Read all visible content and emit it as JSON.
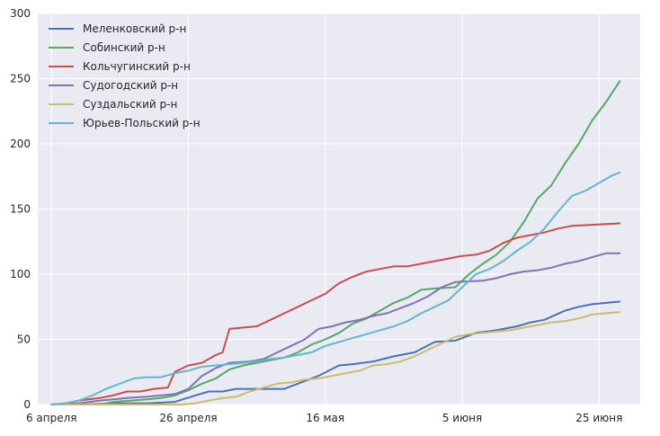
{
  "chart_data": {
    "type": "line",
    "title": "",
    "xlabel": "",
    "ylabel": "",
    "ylim": [
      0,
      300
    ],
    "yticks": [
      0,
      50,
      100,
      150,
      200,
      250,
      300
    ],
    "xlim": [
      "2020-04-04",
      "2020-07-01"
    ],
    "xticks": [
      {
        "date": "2020-04-06",
        "label": "6 апреля"
      },
      {
        "date": "2020-04-26",
        "label": "26 апреля"
      },
      {
        "date": "2020-05-16",
        "label": "16 мая"
      },
      {
        "date": "2020-06-05",
        "label": "5 июня"
      },
      {
        "date": "2020-06-25",
        "label": "25 июня"
      }
    ],
    "grid": true,
    "legend_position": "top-left",
    "colors": {
      "background": "#eaeaf2",
      "grid": "#ffffff",
      "text": "#262626"
    },
    "series": [
      {
        "name": "Меленковский р-н",
        "color": "#4c72b0",
        "points": [
          [
            "2020-04-06",
            0
          ],
          [
            "2020-04-10",
            0
          ],
          [
            "2020-04-16",
            1
          ],
          [
            "2020-04-20",
            1
          ],
          [
            "2020-04-24",
            2
          ],
          [
            "2020-04-27",
            7
          ],
          [
            "2020-04-29",
            10
          ],
          [
            "2020-05-01",
            10
          ],
          [
            "2020-05-03",
            12
          ],
          [
            "2020-05-06",
            12
          ],
          [
            "2020-05-10",
            12
          ],
          [
            "2020-05-13",
            18
          ],
          [
            "2020-05-15",
            22
          ],
          [
            "2020-05-18",
            30
          ],
          [
            "2020-05-20",
            31
          ],
          [
            "2020-05-23",
            33
          ],
          [
            "2020-05-26",
            37
          ],
          [
            "2020-05-29",
            40
          ],
          [
            "2020-06-01",
            48
          ],
          [
            "2020-06-04",
            49
          ],
          [
            "2020-06-07",
            55
          ],
          [
            "2020-06-10",
            57
          ],
          [
            "2020-06-13",
            60
          ],
          [
            "2020-06-15",
            63
          ],
          [
            "2020-06-17",
            65
          ],
          [
            "2020-06-20",
            72
          ],
          [
            "2020-06-22",
            75
          ],
          [
            "2020-06-24",
            77
          ],
          [
            "2020-06-26",
            78
          ],
          [
            "2020-06-28",
            79
          ]
        ]
      },
      {
        "name": "Собинский р-н",
        "color": "#55a868",
        "points": [
          [
            "2020-04-06",
            0
          ],
          [
            "2020-04-13",
            0
          ],
          [
            "2020-04-15",
            2
          ],
          [
            "2020-04-20",
            4
          ],
          [
            "2020-04-22",
            5
          ],
          [
            "2020-04-24",
            7
          ],
          [
            "2020-04-26",
            11
          ],
          [
            "2020-04-28",
            16
          ],
          [
            "2020-04-30",
            20
          ],
          [
            "2020-05-02",
            27
          ],
          [
            "2020-05-04",
            30
          ],
          [
            "2020-05-06",
            32
          ],
          [
            "2020-05-08",
            34
          ],
          [
            "2020-05-10",
            36
          ],
          [
            "2020-05-12",
            40
          ],
          [
            "2020-05-14",
            46
          ],
          [
            "2020-05-16",
            50
          ],
          [
            "2020-05-18",
            55
          ],
          [
            "2020-05-20",
            62
          ],
          [
            "2020-05-22",
            66
          ],
          [
            "2020-05-24",
            72
          ],
          [
            "2020-05-26",
            78
          ],
          [
            "2020-05-28",
            82
          ],
          [
            "2020-05-30",
            88
          ],
          [
            "2020-06-01",
            89
          ],
          [
            "2020-06-04",
            90
          ],
          [
            "2020-06-06",
            100
          ],
          [
            "2020-06-08",
            108
          ],
          [
            "2020-06-10",
            115
          ],
          [
            "2020-06-12",
            125
          ],
          [
            "2020-06-14",
            140
          ],
          [
            "2020-06-16",
            158
          ],
          [
            "2020-06-18",
            168
          ],
          [
            "2020-06-20",
            185
          ],
          [
            "2020-06-22",
            200
          ],
          [
            "2020-06-24",
            218
          ],
          [
            "2020-06-26",
            232
          ],
          [
            "2020-06-28",
            248
          ]
        ]
      },
      {
        "name": "Кольчугинский р-н",
        "color": "#c44e52",
        "points": [
          [
            "2020-04-06",
            0
          ],
          [
            "2020-04-08",
            1
          ],
          [
            "2020-04-10",
            3
          ],
          [
            "2020-04-13",
            5
          ],
          [
            "2020-04-15",
            7
          ],
          [
            "2020-04-17",
            10
          ],
          [
            "2020-04-19",
            10
          ],
          [
            "2020-04-21",
            12
          ],
          [
            "2020-04-23",
            13
          ],
          [
            "2020-04-24",
            25
          ],
          [
            "2020-04-26",
            30
          ],
          [
            "2020-04-28",
            32
          ],
          [
            "2020-04-30",
            38
          ],
          [
            "2020-05-01",
            40
          ],
          [
            "2020-05-02",
            58
          ],
          [
            "2020-05-04",
            59
          ],
          [
            "2020-05-06",
            60
          ],
          [
            "2020-05-08",
            65
          ],
          [
            "2020-05-10",
            70
          ],
          [
            "2020-05-12",
            75
          ],
          [
            "2020-05-14",
            80
          ],
          [
            "2020-05-16",
            85
          ],
          [
            "2020-05-18",
            93
          ],
          [
            "2020-05-20",
            98
          ],
          [
            "2020-05-22",
            102
          ],
          [
            "2020-05-24",
            104
          ],
          [
            "2020-05-26",
            106
          ],
          [
            "2020-05-28",
            106
          ],
          [
            "2020-05-30",
            108
          ],
          [
            "2020-06-01",
            110
          ],
          [
            "2020-06-03",
            112
          ],
          [
            "2020-06-05",
            114
          ],
          [
            "2020-06-07",
            115
          ],
          [
            "2020-06-09",
            118
          ],
          [
            "2020-06-11",
            124
          ],
          [
            "2020-06-13",
            128
          ],
          [
            "2020-06-15",
            130
          ],
          [
            "2020-06-17",
            132
          ],
          [
            "2020-06-19",
            135
          ],
          [
            "2020-06-21",
            137
          ],
          [
            "2020-06-28",
            139
          ]
        ]
      },
      {
        "name": "Судогодский р-н",
        "color": "#8172b2",
        "points": [
          [
            "2020-04-06",
            0
          ],
          [
            "2020-04-10",
            1
          ],
          [
            "2020-04-13",
            3
          ],
          [
            "2020-04-15",
            4
          ],
          [
            "2020-04-17",
            5
          ],
          [
            "2020-04-20",
            6
          ],
          [
            "2020-04-22",
            7
          ],
          [
            "2020-04-24",
            8
          ],
          [
            "2020-04-26",
            12
          ],
          [
            "2020-04-28",
            22
          ],
          [
            "2020-04-30",
            28
          ],
          [
            "2020-05-02",
            32
          ],
          [
            "2020-05-05",
            33
          ],
          [
            "2020-05-07",
            35
          ],
          [
            "2020-05-09",
            40
          ],
          [
            "2020-05-11",
            45
          ],
          [
            "2020-05-13",
            50
          ],
          [
            "2020-05-15",
            58
          ],
          [
            "2020-05-17",
            60
          ],
          [
            "2020-05-19",
            63
          ],
          [
            "2020-05-21",
            65
          ],
          [
            "2020-05-23",
            68
          ],
          [
            "2020-05-25",
            70
          ],
          [
            "2020-05-27",
            74
          ],
          [
            "2020-05-29",
            78
          ],
          [
            "2020-05-31",
            83
          ],
          [
            "2020-06-02",
            90
          ],
          [
            "2020-06-04",
            94
          ],
          [
            "2020-06-08",
            95
          ],
          [
            "2020-06-10",
            97
          ],
          [
            "2020-06-12",
            100
          ],
          [
            "2020-06-14",
            102
          ],
          [
            "2020-06-16",
            103
          ],
          [
            "2020-06-18",
            105
          ],
          [
            "2020-06-20",
            108
          ],
          [
            "2020-06-22",
            110
          ],
          [
            "2020-06-24",
            113
          ],
          [
            "2020-06-26",
            116
          ],
          [
            "2020-06-28",
            116
          ]
        ]
      },
      {
        "name": "Суздальский р-н",
        "color": "#ccb974",
        "points": [
          [
            "2020-04-06",
            0
          ],
          [
            "2020-04-25",
            0
          ],
          [
            "2020-04-27",
            1
          ],
          [
            "2020-04-29",
            3
          ],
          [
            "2020-05-01",
            5
          ],
          [
            "2020-05-03",
            6
          ],
          [
            "2020-05-05",
            10
          ],
          [
            "2020-05-07",
            13
          ],
          [
            "2020-05-09",
            16
          ],
          [
            "2020-05-11",
            17
          ],
          [
            "2020-05-13",
            19
          ],
          [
            "2020-05-15",
            20
          ],
          [
            "2020-05-17",
            22
          ],
          [
            "2020-05-19",
            24
          ],
          [
            "2020-05-21",
            26
          ],
          [
            "2020-05-23",
            30
          ],
          [
            "2020-05-25",
            31
          ],
          [
            "2020-05-27",
            33
          ],
          [
            "2020-05-29",
            37
          ],
          [
            "2020-05-31",
            42
          ],
          [
            "2020-06-02",
            47
          ],
          [
            "2020-06-04",
            52
          ],
          [
            "2020-06-06",
            54
          ],
          [
            "2020-06-08",
            55
          ],
          [
            "2020-06-10",
            56
          ],
          [
            "2020-06-12",
            57
          ],
          [
            "2020-06-14",
            59
          ],
          [
            "2020-06-16",
            61
          ],
          [
            "2020-06-18",
            63
          ],
          [
            "2020-06-20",
            64
          ],
          [
            "2020-06-22",
            66
          ],
          [
            "2020-06-24",
            69
          ],
          [
            "2020-06-26",
            70
          ],
          [
            "2020-06-28",
            71
          ]
        ]
      },
      {
        "name": "Юрьев-Польский р-н",
        "color": "#64b5cd",
        "points": [
          [
            "2020-04-06",
            0
          ],
          [
            "2020-04-08",
            1
          ],
          [
            "2020-04-10",
            3
          ],
          [
            "2020-04-12",
            7
          ],
          [
            "2020-04-14",
            12
          ],
          [
            "2020-04-16",
            16
          ],
          [
            "2020-04-18",
            20
          ],
          [
            "2020-04-20",
            21
          ],
          [
            "2020-04-22",
            21
          ],
          [
            "2020-04-24",
            24
          ],
          [
            "2020-04-26",
            26
          ],
          [
            "2020-04-28",
            29
          ],
          [
            "2020-04-30",
            30
          ],
          [
            "2020-05-02",
            31
          ],
          [
            "2020-05-04",
            32
          ],
          [
            "2020-05-06",
            33
          ],
          [
            "2020-05-08",
            35
          ],
          [
            "2020-05-10",
            36
          ],
          [
            "2020-05-12",
            38
          ],
          [
            "2020-05-14",
            40
          ],
          [
            "2020-05-16",
            45
          ],
          [
            "2020-05-18",
            48
          ],
          [
            "2020-05-20",
            51
          ],
          [
            "2020-05-22",
            54
          ],
          [
            "2020-05-24",
            57
          ],
          [
            "2020-05-26",
            60
          ],
          [
            "2020-05-28",
            64
          ],
          [
            "2020-05-30",
            70
          ],
          [
            "2020-06-01",
            75
          ],
          [
            "2020-06-03",
            80
          ],
          [
            "2020-06-05",
            90
          ],
          [
            "2020-06-07",
            100
          ],
          [
            "2020-06-09",
            104
          ],
          [
            "2020-06-11",
            110
          ],
          [
            "2020-06-13",
            118
          ],
          [
            "2020-06-15",
            125
          ],
          [
            "2020-06-17",
            135
          ],
          [
            "2020-06-19",
            148
          ],
          [
            "2020-06-21",
            160
          ],
          [
            "2020-06-23",
            164
          ],
          [
            "2020-06-25",
            170
          ],
          [
            "2020-06-27",
            176
          ],
          [
            "2020-06-28",
            178
          ]
        ]
      }
    ]
  }
}
